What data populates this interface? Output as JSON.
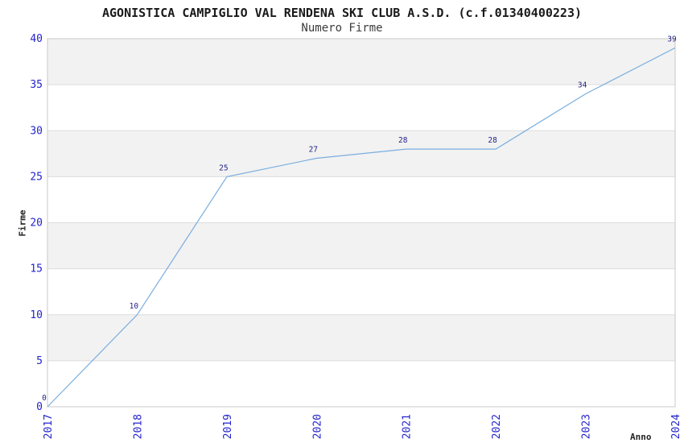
{
  "chart_data": {
    "type": "line",
    "title": "AGONISTICA CAMPIGLIO VAL RENDENA SKI CLUB A.S.D. (c.f.01340400223)",
    "subtitle": "Numero Firme",
    "xlabel": "Anno",
    "ylabel": "Firme",
    "categories": [
      "2017",
      "2018",
      "2019",
      "2020",
      "2021",
      "2022",
      "2023",
      "2024"
    ],
    "values": [
      0,
      10,
      25,
      27,
      28,
      28,
      34,
      39
    ],
    "ylim": [
      0,
      40
    ],
    "ytick_step": 5,
    "grid": true,
    "legend_position": "none",
    "alternating_bands": true,
    "colors": {
      "line": "#7aaede",
      "tick_label": "#2424cc",
      "data_label": "#252588",
      "band": "#f2f2f2",
      "gridline": "#dcdcdc",
      "border": "#c8c8c8",
      "title": "#1a1a1a",
      "subtitle": "#3c3c3c",
      "axis_label": "#222222",
      "background": "#ffffff"
    }
  }
}
